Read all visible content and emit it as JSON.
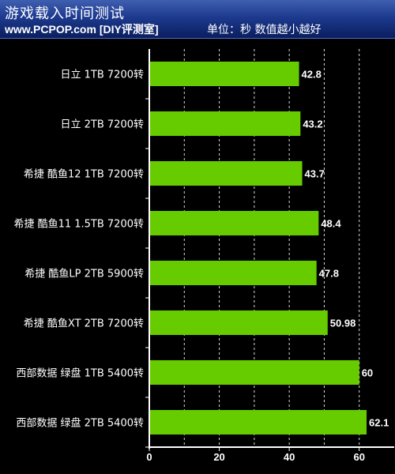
{
  "header": {
    "title": "游戏载入时间测试",
    "source": "www.PCPOP.com [DIY评测室]",
    "note": "单位：秒  数值越小越好"
  },
  "colors": {
    "background": "#000000",
    "header": "#1d3a8f",
    "bar": "#66cc00",
    "grid": "#ffffff"
  },
  "chart_data": {
    "type": "bar",
    "orientation": "horizontal",
    "categories": [
      "日立 1TB 7200转",
      "日立 2TB 7200转",
      "希捷 酷鱼12 1TB 7200转",
      "希捷 酷鱼11 1.5TB 7200转",
      "希捷 酷鱼LP 2TB 5900转",
      "希捷 酷鱼XT 2TB 7200转",
      "西部数据 绿盘 1TB 5400转",
      "西部数据 绿盘 2TB 5400转"
    ],
    "values": [
      42.8,
      43.2,
      43.7,
      48.4,
      47.8,
      50.98,
      60,
      62.1
    ],
    "value_labels": [
      "42.8",
      "43.2",
      "43.7",
      "48.4",
      "47.8",
      "50.98",
      "60",
      "62.1"
    ],
    "x_ticks": [
      "0",
      "20",
      "40",
      "60"
    ],
    "xlim": [
      0,
      70
    ],
    "grid": true
  }
}
